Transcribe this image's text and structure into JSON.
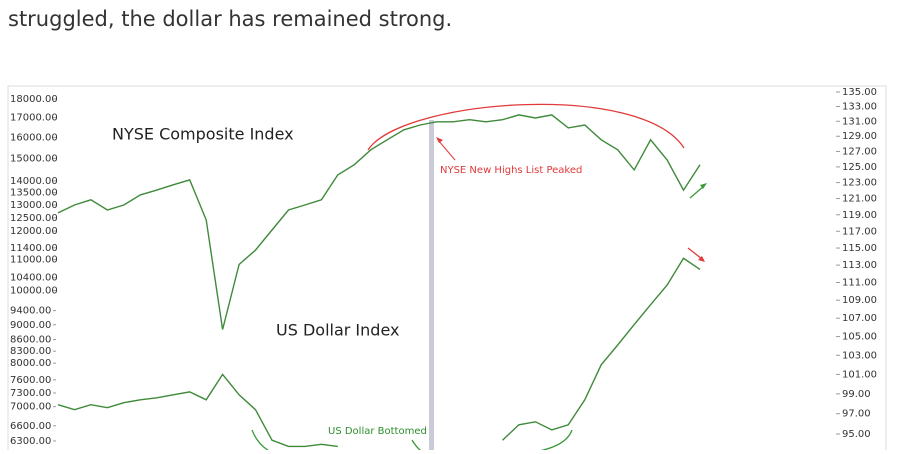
{
  "article": {
    "text": "struggled, the dollar has remained strong."
  },
  "chart_data": {
    "type": "line",
    "log_scale": true,
    "grid": false,
    "categories": [
      null,
      null,
      null,
      null,
      null,
      null,
      null,
      null,
      null,
      null,
      null,
      null,
      null,
      null,
      null,
      null,
      null,
      null,
      null,
      null,
      null,
      null,
      null,
      null,
      null,
      null,
      null,
      null,
      null,
      null,
      null,
      null,
      null,
      null,
      null,
      null,
      null,
      null,
      null,
      null
    ],
    "series": [
      {
        "name": "NYSE Composite Index",
        "color": "#3f8a3a",
        "values": [
          12690,
          13000,
          13210,
          12800,
          13000,
          13410,
          13610,
          13830,
          14040,
          12420,
          8870,
          10830,
          11320,
          12040,
          12800,
          13000,
          13210,
          14260,
          14710,
          15400,
          15880,
          16370,
          16620,
          16780,
          16780,
          16890,
          16780,
          16890,
          17140,
          16980,
          17140,
          16470,
          16620,
          15880,
          15400,
          14480,
          15880,
          14930,
          13610,
          14710
        ]
      },
      {
        "name": "US Dollar Index",
        "color": "#3f8a3a",
        "axis": "y2",
        "values": [
          97.9,
          97.4,
          97.9,
          97.6,
          98.1,
          98.4,
          98.6,
          98.9,
          99.2,
          98.4,
          101.0,
          98.9,
          97.4,
          94.4,
          93.8,
          93.8,
          94.0,
          93.8,
          null,
          null,
          null,
          null,
          null,
          null,
          null,
          null,
          null,
          94.4,
          95.9,
          96.2,
          95.4,
          95.9,
          98.4,
          102.0,
          104.1,
          106.3,
          108.5,
          110.7,
          113.8,
          112.5
        ]
      }
    ],
    "ylim": [
      6128,
      18390
    ],
    "yticks": [
      {
        "value": 18000,
        "label": "18000.00"
      },
      {
        "value": 17000,
        "label": "17000.00"
      },
      {
        "value": 16000,
        "label": "16000.00"
      },
      {
        "value": 15000,
        "label": "15000.00"
      },
      {
        "value": 14000,
        "label": "14000.00"
      },
      {
        "value": 13500,
        "label": "13500.00"
      },
      {
        "value": 13000,
        "label": "13000.00"
      },
      {
        "value": 12500,
        "label": "12500.00"
      },
      {
        "value": 12000,
        "label": "12000.00"
      },
      {
        "value": 11400,
        "label": "11400.00"
      },
      {
        "value": 11000,
        "label": "11000.00"
      },
      {
        "value": 10400,
        "label": "10400.00"
      },
      {
        "value": 10000,
        "label": "10000.00"
      },
      {
        "value": 9400,
        "label": "9400.00"
      },
      {
        "value": 9000,
        "label": "9000.00"
      },
      {
        "value": 8600,
        "label": "8600.00"
      },
      {
        "value": 8300,
        "label": "8300.00"
      },
      {
        "value": 8000,
        "label": "8000.00"
      },
      {
        "value": 7600,
        "label": "7600.00"
      },
      {
        "value": 7300,
        "label": "7300.00"
      },
      {
        "value": 7000,
        "label": "7000.00"
      },
      {
        "value": 6600,
        "label": "6600.00"
      },
      {
        "value": 6300,
        "label": "6300.00"
      }
    ],
    "y2lim": [
      93.45,
      135
    ],
    "y2ticks": [
      {
        "value": 135,
        "label": "135.00"
      },
      {
        "value": 133,
        "label": "133.00"
      },
      {
        "value": 131,
        "label": "131.00"
      },
      {
        "value": 129,
        "label": "129.00"
      },
      {
        "value": 127,
        "label": "127.00"
      },
      {
        "value": 125,
        "label": "125.00"
      },
      {
        "value": 123,
        "label": "123.00"
      },
      {
        "value": 121,
        "label": "121.00"
      },
      {
        "value": 119,
        "label": "119.00"
      },
      {
        "value": 117,
        "label": "117.00"
      },
      {
        "value": 115,
        "label": "115.00"
      },
      {
        "value": 113,
        "label": "113.00"
      },
      {
        "value": 111,
        "label": "111.00"
      },
      {
        "value": 109,
        "label": "109.00"
      },
      {
        "value": 107,
        "label": "107.00"
      },
      {
        "value": 105,
        "label": "105.00"
      },
      {
        "value": 103,
        "label": "103.00"
      },
      {
        "value": 101,
        "label": "101.00"
      },
      {
        "value": 99,
        "label": "99.00"
      },
      {
        "value": 97,
        "label": "97.00"
      },
      {
        "value": 95,
        "label": "95.00"
      }
    ],
    "annotations": [
      {
        "text": "NYSE New Highs List Peaked"
      },
      {
        "text": "US Dollar Bottomed"
      }
    ]
  }
}
